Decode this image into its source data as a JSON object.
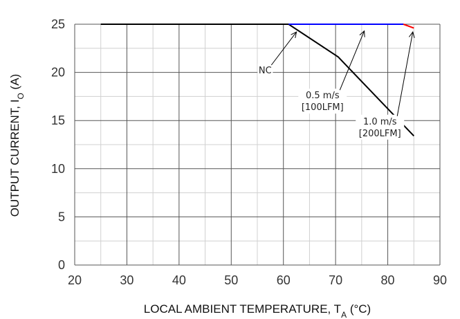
{
  "chart_data": {
    "type": "line",
    "title": "",
    "top_title_fragment": "",
    "xlabel": "LOCAL AMBIENT TEMPERATURE, T",
    "xlabel_sub": "A",
    "xlabel_unit": " (°C)",
    "ylabel": "OUTPUT CURRENT, I",
    "ylabel_sub": "O",
    "ylabel_unit": " (A)",
    "xlim": [
      20,
      90
    ],
    "ylim": [
      0,
      25
    ],
    "xticks": [
      20,
      30,
      40,
      50,
      60,
      70,
      80,
      90
    ],
    "yticks": [
      0,
      5,
      10,
      15,
      20,
      25
    ],
    "grid": true,
    "series": [
      {
        "color": "#000000",
        "x": [
          25,
          61,
          70.5,
          85
        ],
        "y": [
          25,
          25,
          21.6,
          13.4
        ]
      },
      {
        "color": "#0000ff",
        "x": [
          61,
          83
        ],
        "y": [
          25,
          25
        ]
      },
      {
        "color": "#ff0000",
        "x": [
          83,
          85
        ],
        "y": [
          25,
          24.6
        ]
      }
    ],
    "annotations": [
      {
        "label": "NC",
        "lines": [
          "NC"
        ],
        "tx": 56.5,
        "ty": 19.9,
        "ax": 62.5,
        "ay": 24.2
      },
      {
        "label": "0.5 m/s [100LFM]",
        "lines": [
          "0.5 m/s",
          "[100LFM]"
        ],
        "tx": 67.5,
        "ty": 17.3,
        "ax": 75.5,
        "ay": 24.3
      },
      {
        "label": "1.0 m/s [200LFM]",
        "lines": [
          "1.0 m/s",
          "[200LFM]"
        ],
        "tx": 78.5,
        "ty": 14.6,
        "ax": 84.8,
        "ay": 24.2
      }
    ]
  }
}
